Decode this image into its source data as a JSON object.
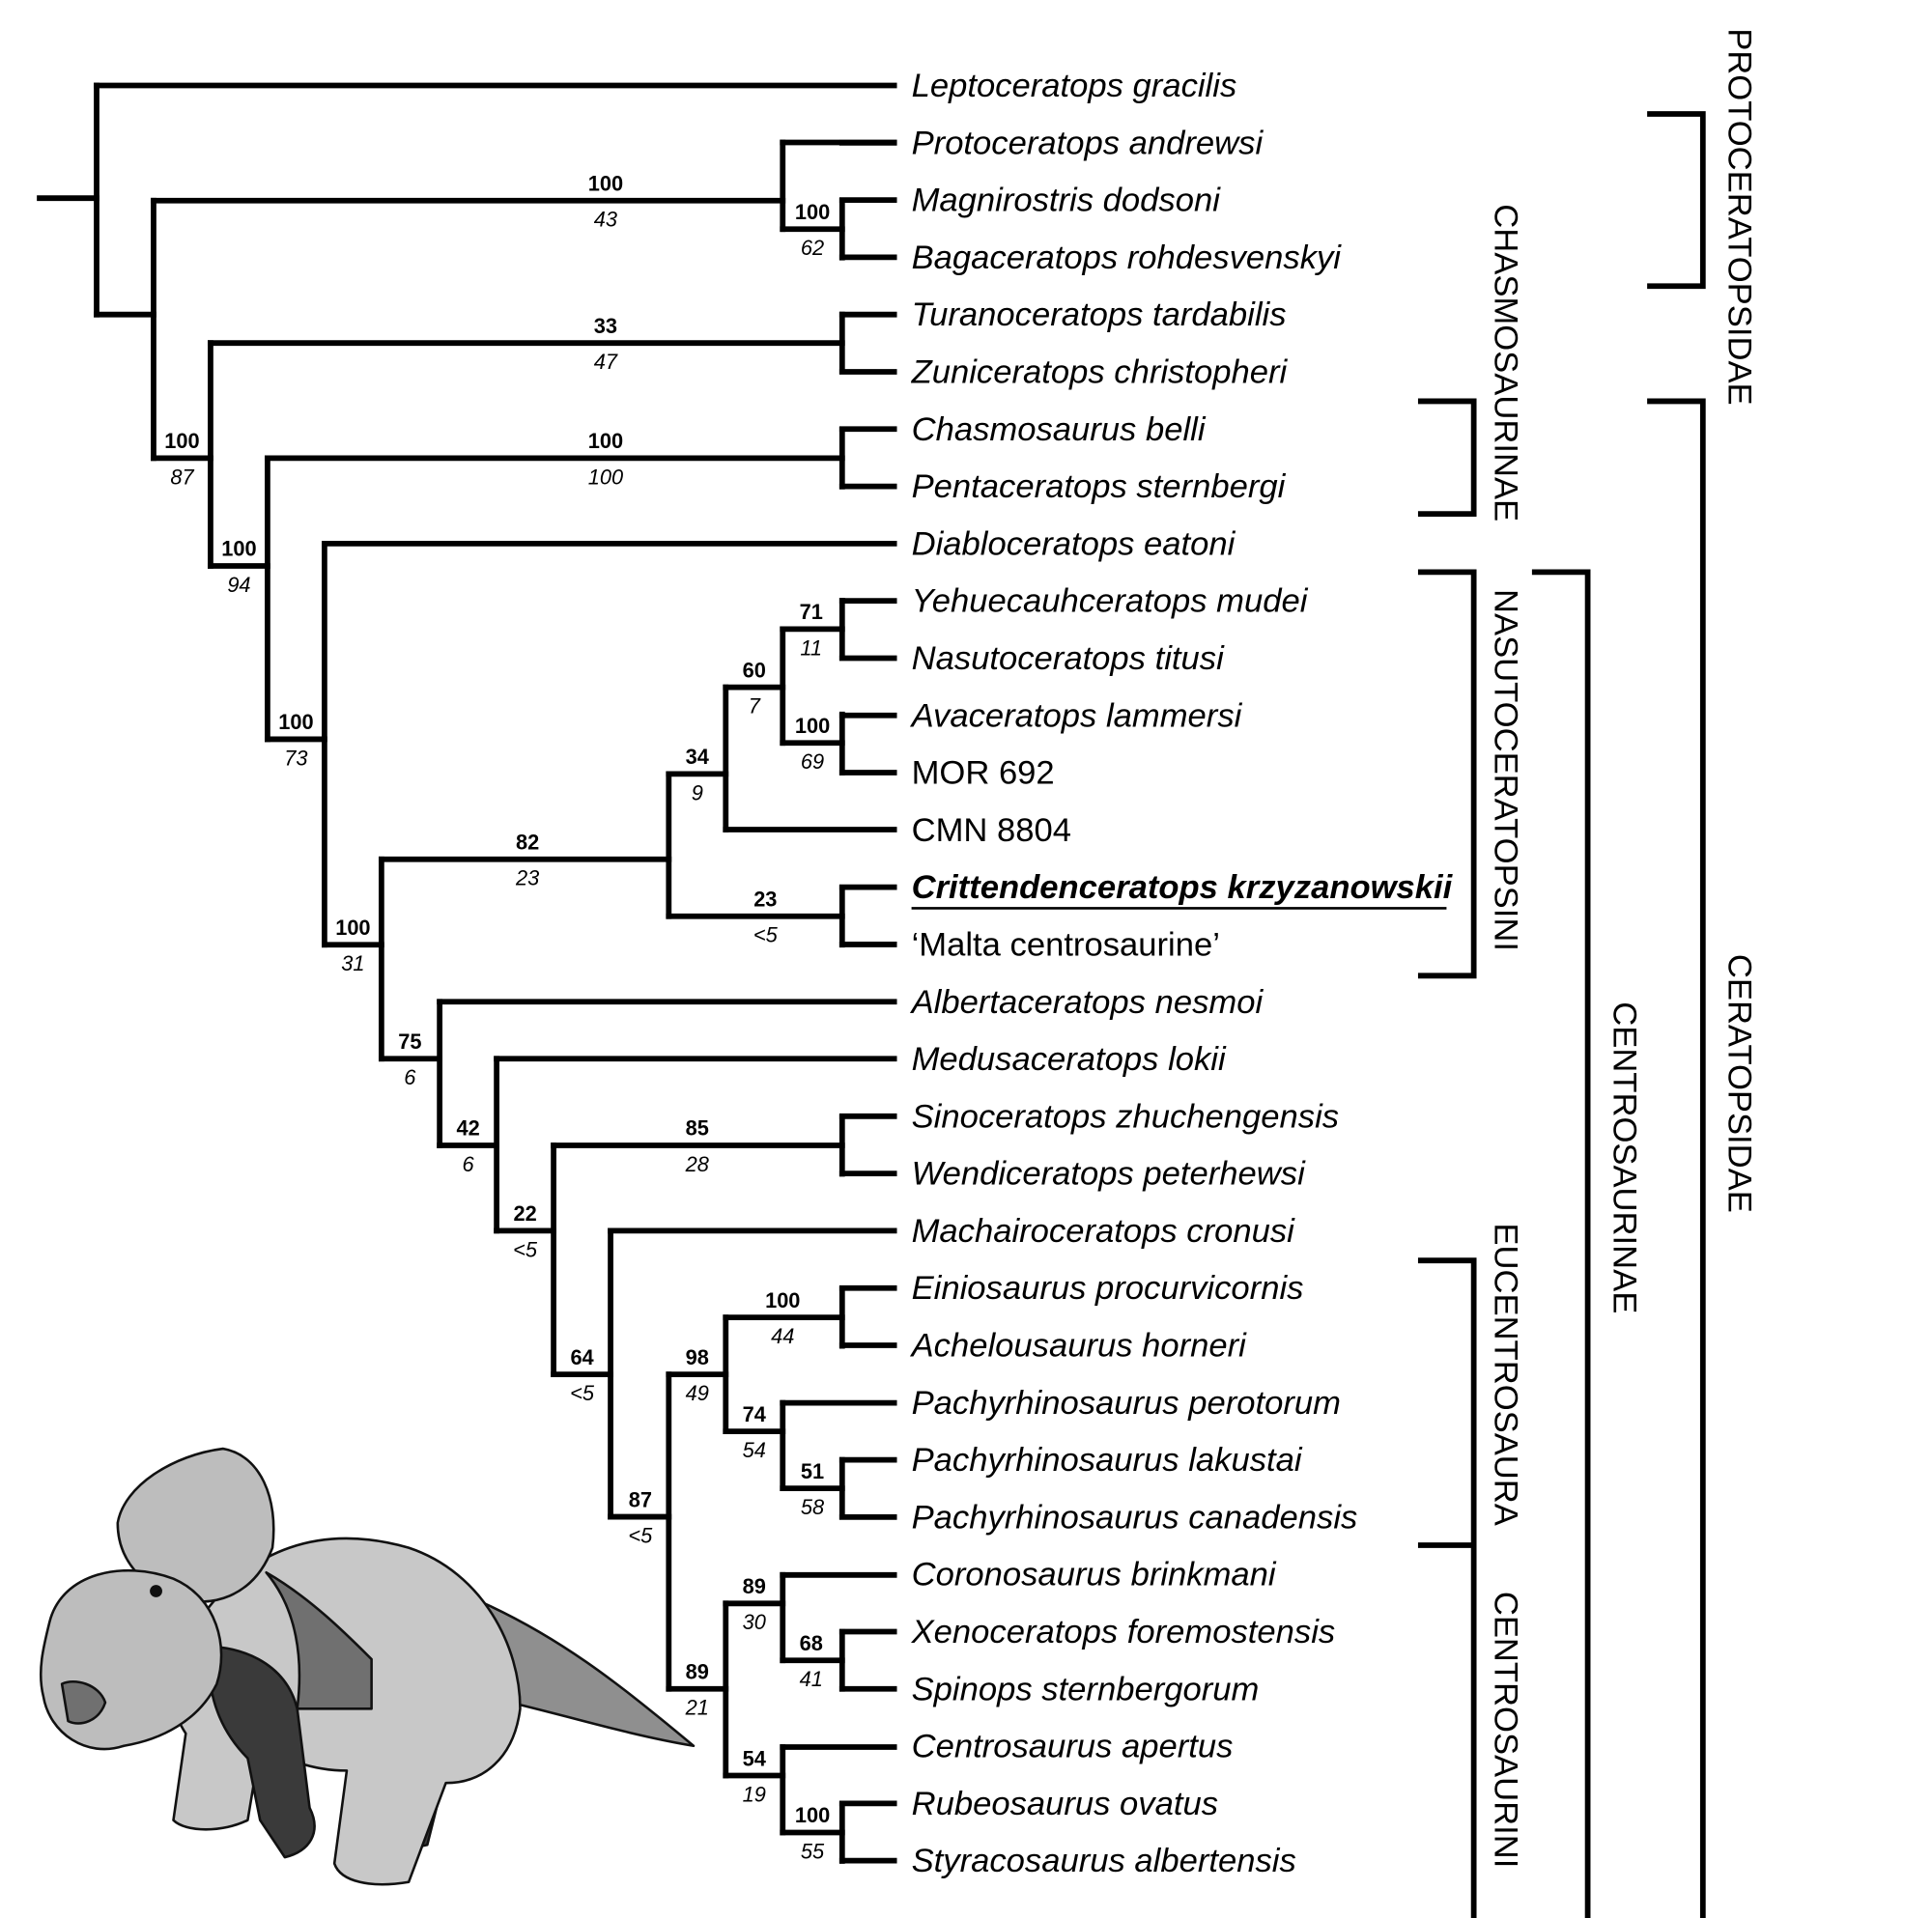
{
  "taxa": [
    "Leptoceratops gracilis",
    "Protoceratops andrewsi",
    "Magnirostris dodsoni",
    "Bagaceratops rohdesvenskyi",
    "Turanoceratops tardabilis",
    "Zuniceratops christopheri",
    "Chasmosaurus belli",
    "Pentaceratops sternbergi",
    "Diabloceratops eatoni",
    "Yehuecauhceratops mudei",
    "Nasutoceratops titusi",
    "Avaceratops lammersi",
    "MOR 692",
    "CMN 8804",
    "Crittendenceratops krzyzanowskii",
    "‘Malta centrosaurine’",
    "Albertaceratops nesmoi",
    "Medusaceratops lokii",
    "Sinoceratops zhuchengensis",
    "Wendiceratops peterhewsi",
    "Machairoceratops cronusi",
    "Einiosaurus procurvicornis",
    "Achelousaurus horneri",
    "Pachyrhinosaurus perotorum",
    "Pachyrhinosaurus lakustai",
    "Pachyrhinosaurus canadensis",
    "Coronosaurus brinkmani",
    "Xenoceratops foremostensis",
    "Spinops sternbergorum",
    "Centrosaurus apertus",
    "Rubeosaurus ovatus",
    "Styracosaurus albertensis"
  ],
  "nodes": [
    {
      "top": "100",
      "bottom": "43"
    },
    {
      "top": "100",
      "bottom": "62"
    },
    {
      "top": "100",
      "bottom": "87"
    },
    {
      "top": "33",
      "bottom": "47"
    },
    {
      "top": "100",
      "bottom": "94"
    },
    {
      "top": "100",
      "bottom": "100"
    },
    {
      "top": "100",
      "bottom": "73"
    },
    {
      "top": "100",
      "bottom": "31"
    },
    {
      "top": "82",
      "bottom": "23"
    },
    {
      "top": "34",
      "bottom": "9"
    },
    {
      "top": "60",
      "bottom": "7"
    },
    {
      "top": "71",
      "bottom": "11"
    },
    {
      "top": "100",
      "bottom": "69"
    },
    {
      "top": "23",
      "bottom": "<5"
    },
    {
      "top": "75",
      "bottom": "6"
    },
    {
      "top": "42",
      "bottom": "6"
    },
    {
      "top": "22",
      "bottom": "<5"
    },
    {
      "top": "85",
      "bottom": "28"
    },
    {
      "top": "64",
      "bottom": "<5"
    },
    {
      "top": "87",
      "bottom": "<5"
    },
    {
      "top": "98",
      "bottom": "49"
    },
    {
      "top": "100",
      "bottom": "44"
    },
    {
      "top": "74",
      "bottom": "54"
    },
    {
      "top": "51",
      "bottom": "58"
    },
    {
      "top": "89",
      "bottom": "21"
    },
    {
      "top": "89",
      "bottom": "30"
    },
    {
      "top": "68",
      "bottom": "41"
    },
    {
      "top": "54",
      "bottom": "19"
    },
    {
      "top": "100",
      "bottom": "55"
    }
  ],
  "clades": {
    "protoceratopsidae": "PROTOCERATOPSIDAE",
    "chasmosaurinae": "CHASMOSAURINAE",
    "nasutoceratopsini": "NASUTOCERATOPSINI",
    "eucentrosaura": "EUCENTROSAURA",
    "centrosaurini": "CENTROSAURINI",
    "centrosaurinae": "CENTROSAURINAE",
    "ceratopsidae": "CERATOPSIDAE"
  },
  "focal_taxon_index": 14
}
